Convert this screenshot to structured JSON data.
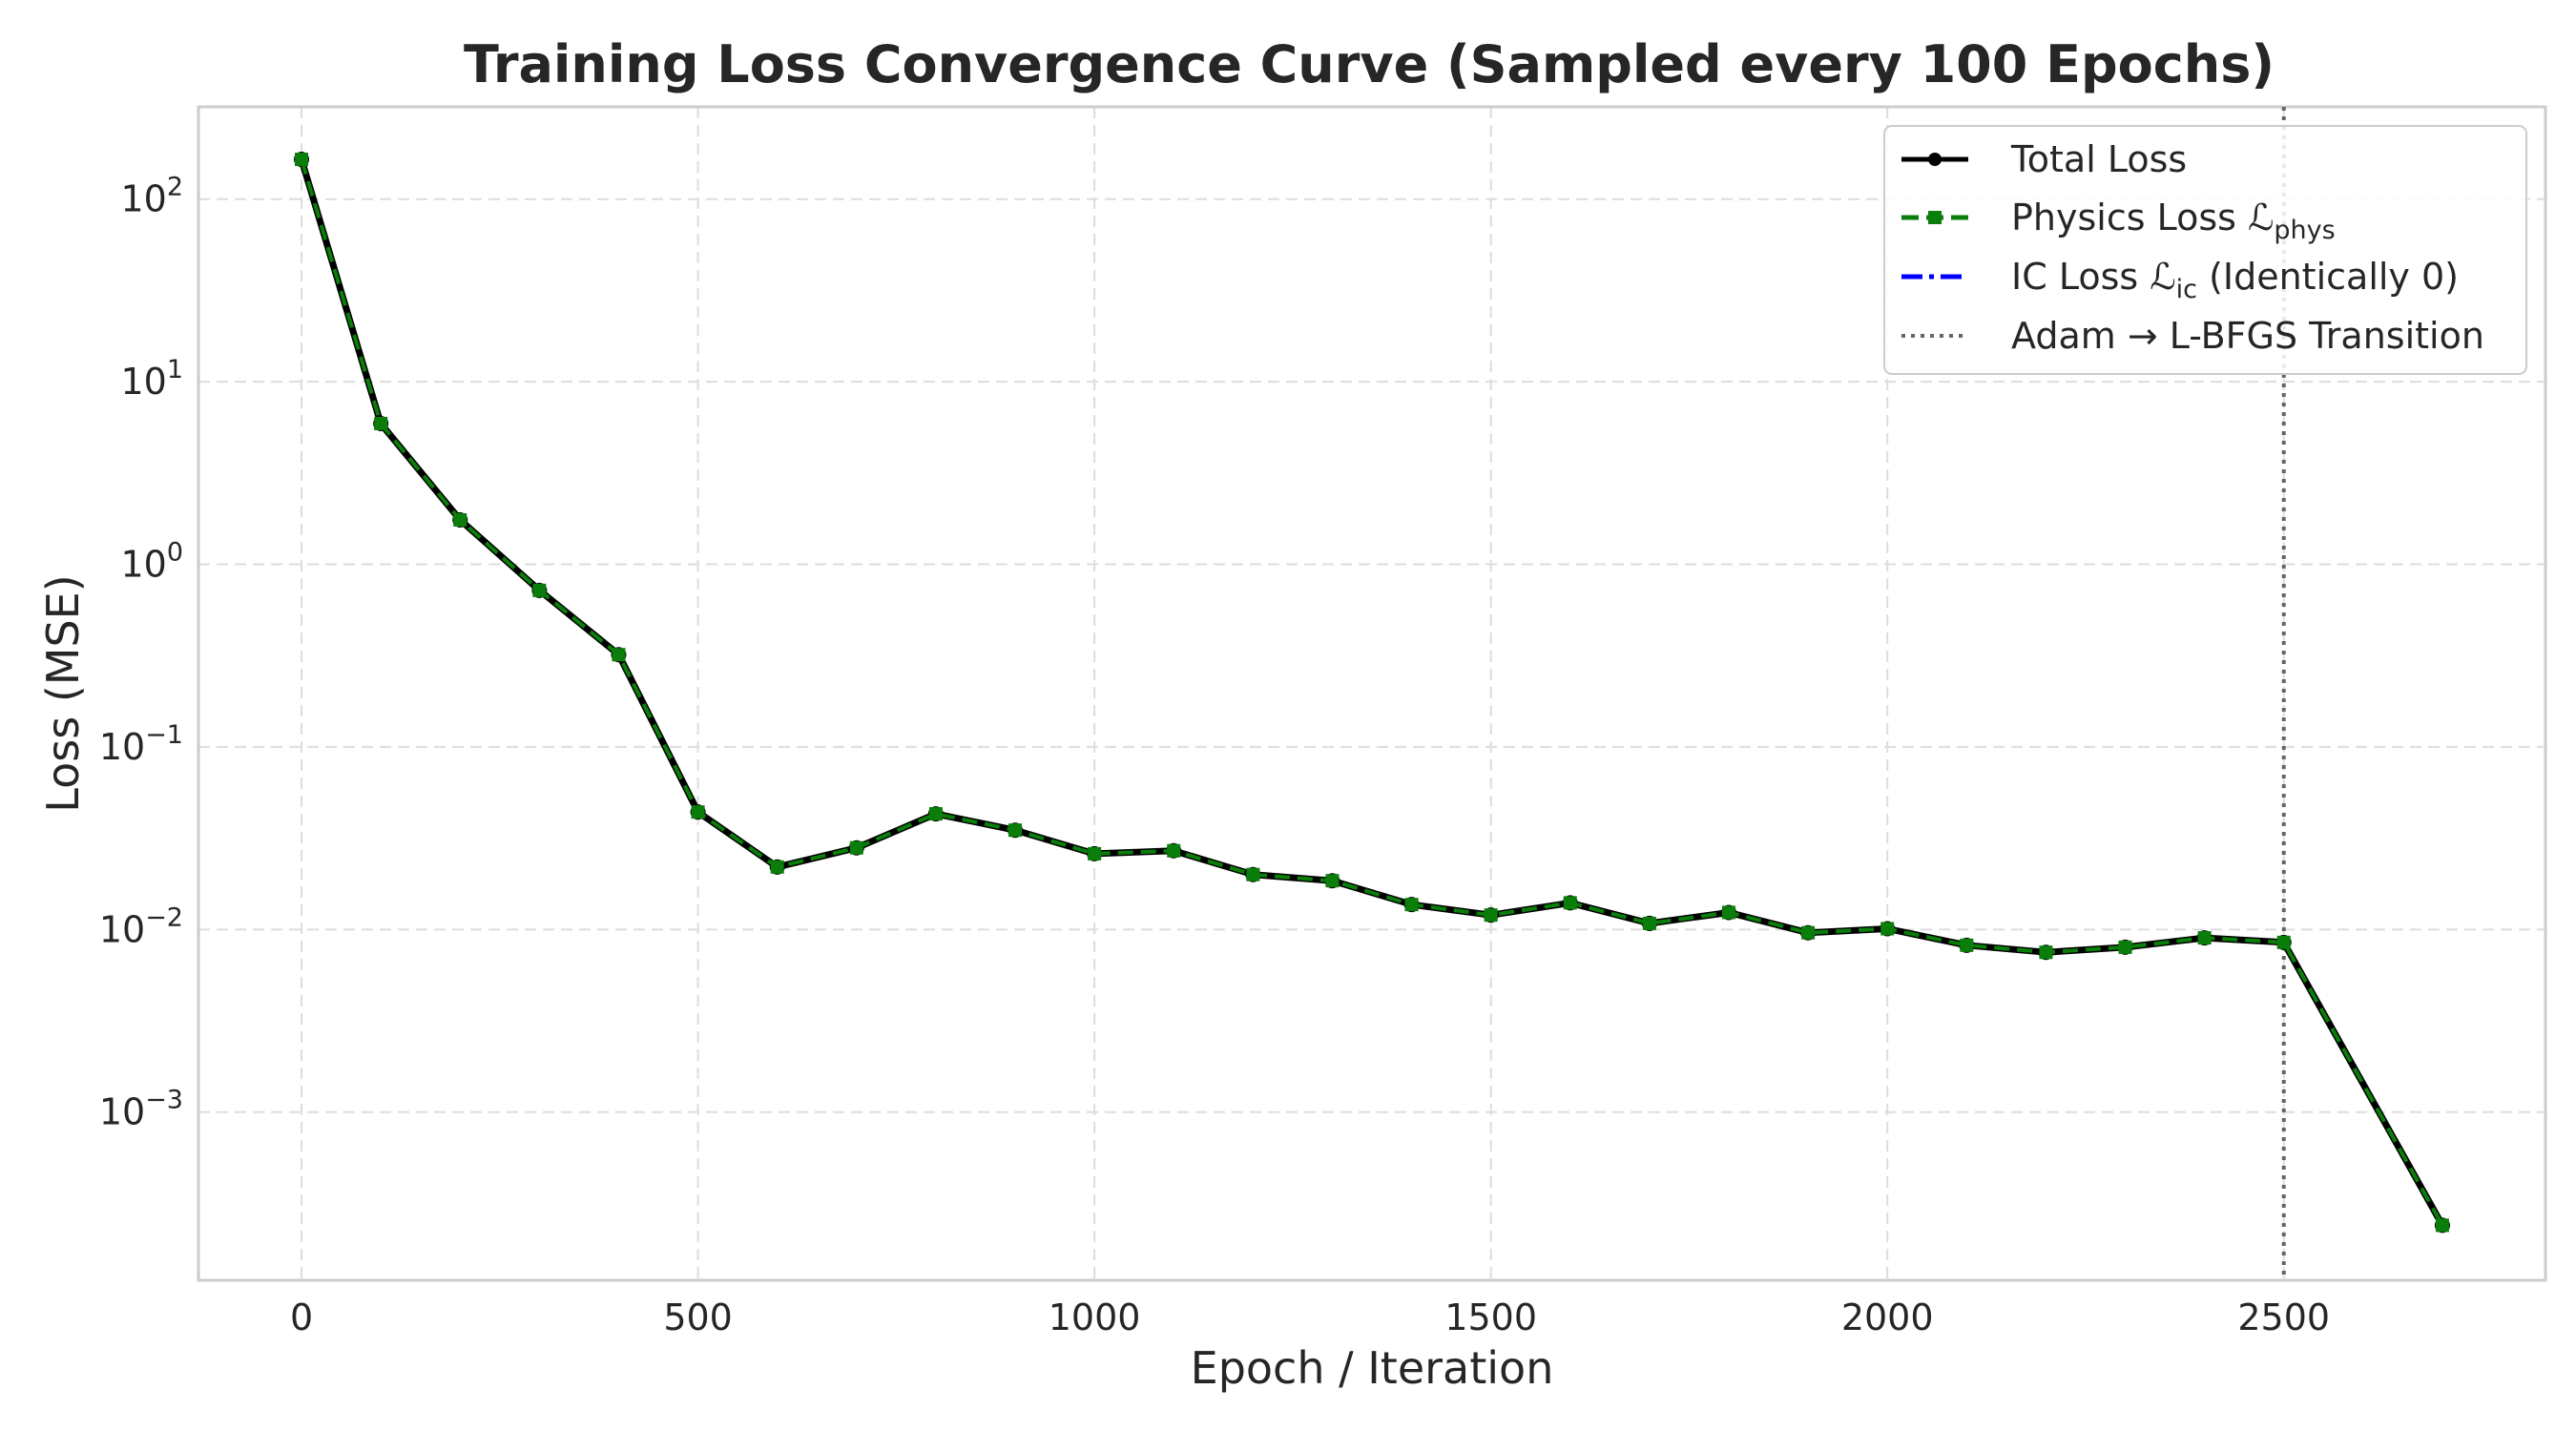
{
  "chart_data": {
    "type": "line",
    "title": "Training Loss Convergence Curve (Sampled every 100 Epochs)",
    "xlabel": "Epoch / Iteration",
    "ylabel": "Loss (MSE)",
    "x_scale": "linear",
    "y_scale": "log",
    "xlim": [
      -130,
      2830
    ],
    "ylim": [
      0.00012,
      320
    ],
    "x_ticks": [
      0,
      500,
      1000,
      1500,
      2000,
      2500
    ],
    "x_tick_labels": [
      "0",
      "500",
      "1000",
      "1500",
      "2000",
      "2500"
    ],
    "y_ticks": [
      2,
      1,
      0,
      -1,
      -2,
      -3
    ],
    "y_tick_labels": [
      {
        "base": "10",
        "exp": "2"
      },
      {
        "base": "10",
        "exp": "1"
      },
      {
        "base": "10",
        "exp": "0"
      },
      {
        "base": "10",
        "exp": "−1"
      },
      {
        "base": "10",
        "exp": "−2"
      },
      {
        "base": "10",
        "exp": "−3"
      }
    ],
    "grid": true,
    "x": [
      0,
      100,
      200,
      300,
      400,
      500,
      600,
      700,
      800,
      900,
      1000,
      1100,
      1200,
      1300,
      1400,
      1500,
      1600,
      1700,
      1800,
      1900,
      2000,
      2100,
      2200,
      2300,
      2400,
      2500,
      2700
    ],
    "series": [
      {
        "name": "Total Loss",
        "color": "#000000",
        "style": "solid",
        "marker": "circle",
        "values": [
          165,
          5.9,
          1.75,
          0.72,
          0.32,
          0.044,
          0.022,
          0.028,
          0.043,
          0.035,
          0.026,
          0.027,
          0.02,
          0.0185,
          0.0137,
          0.012,
          0.014,
          0.0108,
          0.0124,
          0.0096,
          0.0101,
          0.0082,
          0.0075,
          0.008,
          0.009,
          0.0085,
          0.00024
        ]
      },
      {
        "name_prefix": "Physics Loss ",
        "name_symbol": "ℒ",
        "name_sub": "phys",
        "color": "#0a7d0a",
        "style": "dashed",
        "marker": "square",
        "values": [
          165,
          5.9,
          1.75,
          0.72,
          0.32,
          0.044,
          0.022,
          0.028,
          0.043,
          0.035,
          0.026,
          0.027,
          0.02,
          0.0185,
          0.0137,
          0.012,
          0.014,
          0.0108,
          0.0124,
          0.0096,
          0.0101,
          0.0082,
          0.0075,
          0.008,
          0.009,
          0.0085,
          0.00024
        ]
      },
      {
        "name_prefix": "IC Loss ",
        "name_symbol": "ℒ",
        "name_sub": "ic",
        "name_suffix": " (Identically 0)",
        "color": "#0000ff",
        "style": "dashdot",
        "values": [
          0,
          0,
          0,
          0,
          0,
          0,
          0,
          0,
          0,
          0,
          0,
          0,
          0,
          0,
          0,
          0,
          0,
          0,
          0,
          0,
          0,
          0,
          0,
          0,
          0,
          0,
          0
        ]
      }
    ],
    "vline": {
      "x": 2500,
      "label": "Adam → L-BFGS Transition",
      "color": "#666666",
      "style": "dotted"
    },
    "legend_placement": "top-right"
  }
}
